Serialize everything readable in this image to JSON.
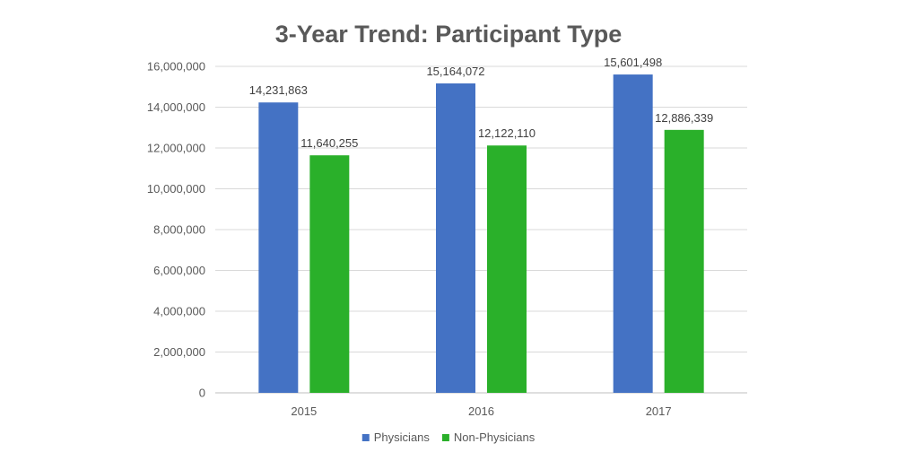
{
  "chart_data": {
    "type": "bar",
    "title": "3-Year Trend: Participant Type",
    "categories": [
      "2015",
      "2016",
      "2017"
    ],
    "series": [
      {
        "name": "Physicians",
        "values": [
          14231863,
          15164072,
          15601498
        ],
        "labels": [
          "14,231,863",
          "15,164,072",
          "15,601,498"
        ],
        "color": "#4472c4"
      },
      {
        "name": "Non-Physicians",
        "values": [
          11640255,
          12122110,
          12886339
        ],
        "labels": [
          "11,640,255",
          "12,122,110",
          "12,886,339"
        ],
        "color": "#2ab02a"
      }
    ],
    "yticks": [
      "0",
      "2,000,000",
      "4,000,000",
      "6,000,000",
      "8,000,000",
      "10,000,000",
      "12,000,000",
      "14,000,000",
      "16,000,000"
    ],
    "ylim": [
      0,
      16000000
    ],
    "grid": true,
    "legend_position": "bottom"
  }
}
